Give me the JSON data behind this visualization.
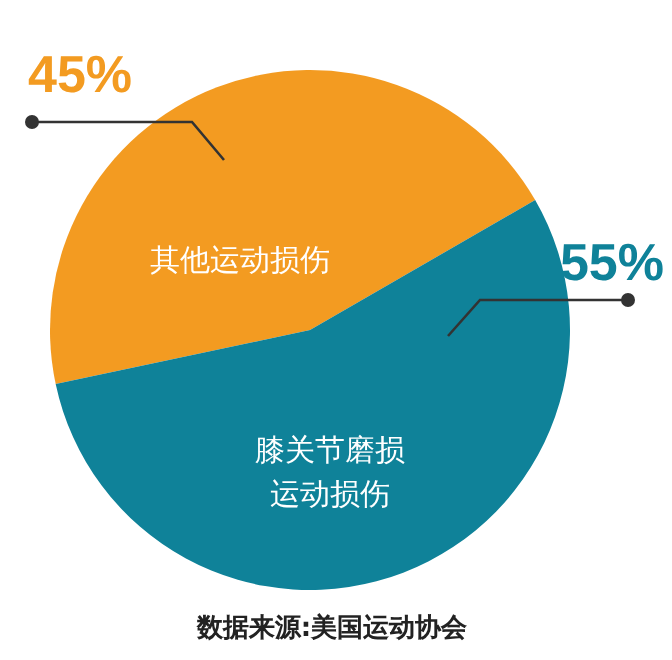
{
  "chart_data": {
    "type": "pie",
    "categories": [
      "其他运动损伤",
      "膝关节磨损运动损伤"
    ],
    "values": [
      45,
      55
    ],
    "colors": [
      "#f39b21",
      "#0f8299"
    ],
    "value_labels": [
      "45%",
      "55%"
    ],
    "legend": false,
    "annotations": [
      "数据来源:美国运动协会"
    ]
  }
}
